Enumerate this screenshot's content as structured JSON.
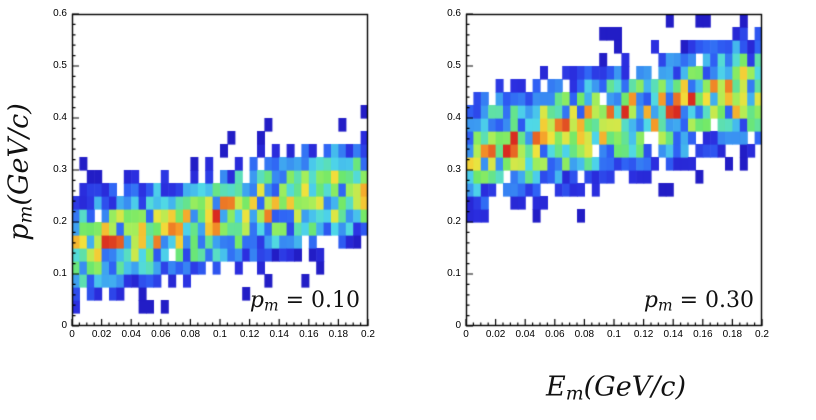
{
  "figure": {
    "ylabel": {
      "base": "p",
      "sub": "m",
      "rest": "(GeV/c)"
    },
    "xlabel": {
      "base": "E",
      "sub": "m",
      "rest": "(GeV/c)"
    }
  },
  "palette": {
    "stops": [
      [
        "0.00",
        "#1c10b4"
      ],
      [
        "0.12",
        "#2b2fe0"
      ],
      [
        "0.22",
        "#2f62f5"
      ],
      [
        "0.32",
        "#3fa8f0"
      ],
      [
        "0.40",
        "#4fd8e8"
      ],
      [
        "0.55",
        "#6ee86a"
      ],
      [
        "0.65",
        "#a8ee5a"
      ],
      [
        "0.78",
        "#f2e23c"
      ],
      [
        "0.88",
        "#f59a28"
      ],
      [
        "1.00",
        "#d92b20"
      ]
    ]
  },
  "chart_data": [
    {
      "type": "heatmap",
      "title": "",
      "annotation": {
        "base": "p",
        "sub": "m",
        "rest": " = 0.10"
      },
      "xlabel": "E_m(GeV/c)",
      "ylabel": "p_m(GeV/c)",
      "xlim": [
        0,
        0.2
      ],
      "ylim": [
        0,
        0.6
      ],
      "x_ticks": [
        "0",
        "0.02",
        "0.04",
        "0.06",
        "0.08",
        "0.1",
        "0.12",
        "0.14",
        "0.16",
        "0.18",
        "0.2"
      ],
      "y_ticks": [
        "0",
        "0.1",
        "0.2",
        "0.3",
        "0.4",
        "0.5",
        "0.6"
      ],
      "x_bin_width": 0.005,
      "y_bin_width": 0.025,
      "band": {
        "center_at_x0": 0.15,
        "center_at_xmax": 0.27,
        "sigma": 0.055,
        "seed": 7
      },
      "ridge": {
        "x": [
          0.0,
          0.05,
          0.1,
          0.15,
          0.2
        ],
        "y": [
          0.15,
          0.18,
          0.21,
          0.24,
          0.27
        ]
      },
      "grid": false,
      "legend": "none"
    },
    {
      "type": "heatmap",
      "title": "",
      "annotation": {
        "base": "p",
        "sub": "m",
        "rest": " = 0.30"
      },
      "xlabel": "E_m(GeV/c)",
      "ylabel": "p_m(GeV/c)",
      "xlim": [
        0,
        0.2
      ],
      "ylim": [
        0,
        0.6
      ],
      "x_ticks": [
        "0",
        "0.02",
        "0.04",
        "0.06",
        "0.08",
        "0.1",
        "0.12",
        "0.14",
        "0.16",
        "0.18",
        "0.2"
      ],
      "y_ticks": [
        "0",
        "0.1",
        "0.2",
        "0.3",
        "0.4",
        "0.5",
        "0.6"
      ],
      "x_bin_width": 0.005,
      "y_bin_width": 0.025,
      "band": {
        "center_at_x0": 0.33,
        "center_at_xmax": 0.46,
        "sigma": 0.06,
        "seed": 13
      },
      "ridge": {
        "x": [
          0.0,
          0.05,
          0.1,
          0.15,
          0.2
        ],
        "y": [
          0.33,
          0.36,
          0.4,
          0.43,
          0.46
        ]
      },
      "grid": false,
      "legend": "none"
    }
  ]
}
